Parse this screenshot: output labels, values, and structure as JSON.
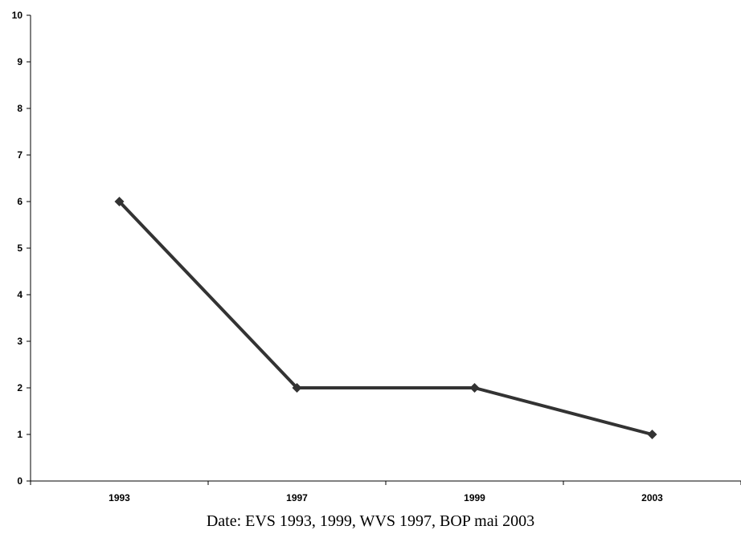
{
  "chart_data": {
    "type": "line",
    "categories": [
      "1993",
      "1997",
      "1999",
      "2003"
    ],
    "series": [
      {
        "values": [
          6,
          2,
          2,
          1
        ]
      }
    ],
    "ylim": [
      0,
      10
    ],
    "yticks": [
      0,
      1,
      2,
      3,
      4,
      5,
      6,
      7,
      8,
      9,
      10
    ],
    "grid": false,
    "legend": "none",
    "marker": "diamond",
    "line_color": "#333333"
  },
  "source_note": "Date: EVS 1993, 1999, WVS 1997, BOP mai 2003"
}
